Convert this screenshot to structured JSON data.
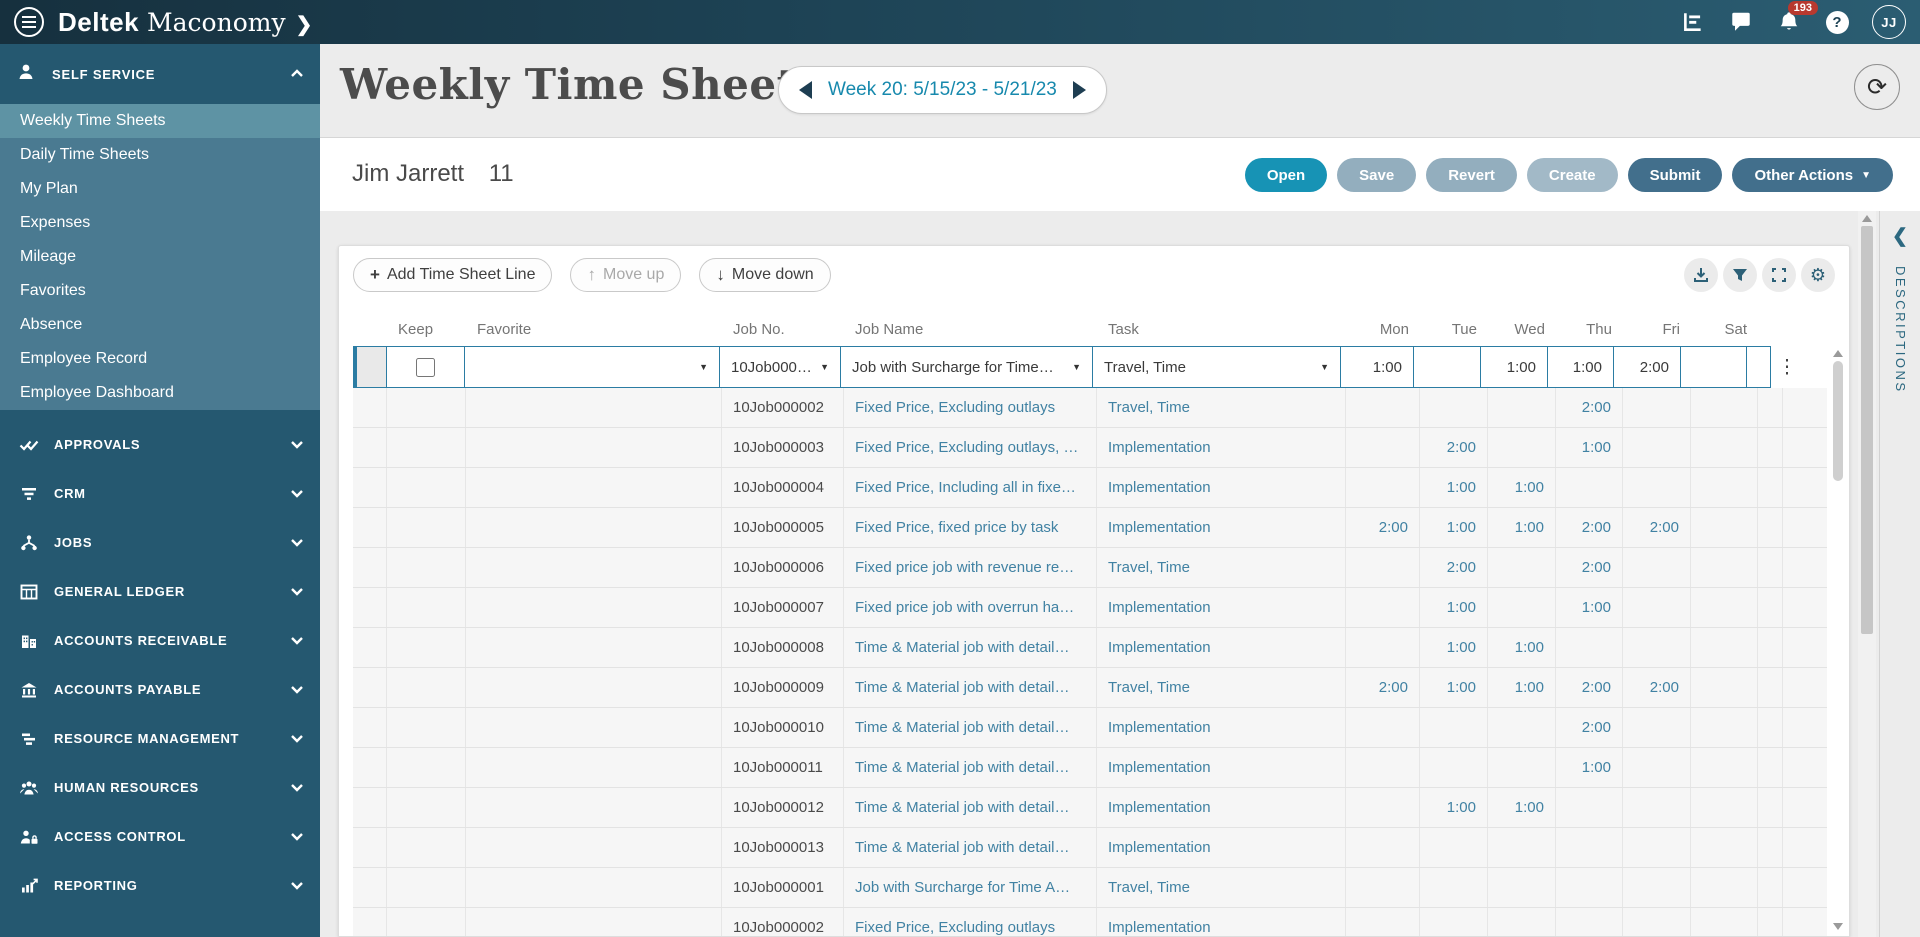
{
  "topbar": {
    "brand_primary": "Deltek",
    "brand_secondary": "Maconomy",
    "brand_chevron": "❯",
    "notification_count": "193",
    "avatar_initials": "JJ"
  },
  "sidebar": {
    "self_service": {
      "label": "SELF SERVICE",
      "items": [
        {
          "label": "Weekly Time Sheets",
          "active": true
        },
        {
          "label": "Daily Time Sheets"
        },
        {
          "label": "My Plan"
        },
        {
          "label": "Expenses"
        },
        {
          "label": "Mileage"
        },
        {
          "label": "Favorites"
        },
        {
          "label": "Absence"
        },
        {
          "label": "Employee Record"
        },
        {
          "label": "Employee Dashboard"
        }
      ]
    },
    "sections": [
      {
        "label": "APPROVALS",
        "icon": "approvals"
      },
      {
        "label": "CRM",
        "icon": "crm"
      },
      {
        "label": "JOBS",
        "icon": "jobs"
      },
      {
        "label": "GENERAL LEDGER",
        "icon": "general-ledger"
      },
      {
        "label": "ACCOUNTS RECEIVABLE",
        "icon": "accounts-receivable"
      },
      {
        "label": "ACCOUNTS PAYABLE",
        "icon": "accounts-payable"
      },
      {
        "label": "RESOURCE MANAGEMENT",
        "icon": "resource-management"
      },
      {
        "label": "HUMAN RESOURCES",
        "icon": "human-resources"
      },
      {
        "label": "ACCESS CONTROL",
        "icon": "access-control"
      },
      {
        "label": "REPORTING",
        "icon": "reporting"
      }
    ]
  },
  "page": {
    "title": "Weekly Time Sheets",
    "week_label": "Week 20: 5/15/23 - 5/21/23",
    "employee_name": "Jim Jarrett",
    "employee_number": "11"
  },
  "actions": {
    "open": "Open",
    "save": "Save",
    "revert": "Revert",
    "create": "Create",
    "submit": "Submit",
    "other_actions": "Other Actions"
  },
  "toolbar": {
    "add_line": "Add Time Sheet Line",
    "move_up": "Move up",
    "move_down": "Move down"
  },
  "table": {
    "columns": [
      "Keep",
      "Favorite",
      "Job No.",
      "Job Name",
      "Task",
      "Mon",
      "Tue",
      "Wed",
      "Thu",
      "Fri",
      "Sat"
    ],
    "rows": [
      {
        "job_no": "10Job000…",
        "job_name": "Job with Surcharge for Time…",
        "task": "Travel, Time",
        "days": [
          "1:00",
          "",
          "1:00",
          "1:00",
          "2:00",
          ""
        ]
      },
      {
        "job_no": "10Job000002",
        "job_name": "Fixed Price, Excluding outlays",
        "task": "Travel, Time",
        "days": [
          "",
          "",
          "",
          "2:00",
          "",
          ""
        ]
      },
      {
        "job_no": "10Job000003",
        "job_name": "Fixed Price, Excluding outlays, …",
        "task": "Implementation",
        "days": [
          "",
          "2:00",
          "",
          "1:00",
          "",
          ""
        ]
      },
      {
        "job_no": "10Job000004",
        "job_name": "Fixed Price, Including all in fixe…",
        "task": "Implementation",
        "days": [
          "",
          "1:00",
          "1:00",
          "",
          "",
          ""
        ]
      },
      {
        "job_no": "10Job000005",
        "job_name": "Fixed Price, fixed price by task",
        "task": "Implementation",
        "days": [
          "2:00",
          "1:00",
          "1:00",
          "2:00",
          "2:00",
          ""
        ]
      },
      {
        "job_no": "10Job000006",
        "job_name": "Fixed price job with revenue re…",
        "task": "Travel, Time",
        "days": [
          "",
          "2:00",
          "",
          "2:00",
          "",
          ""
        ]
      },
      {
        "job_no": "10Job000007",
        "job_name": "Fixed price job with overrun ha…",
        "task": "Implementation",
        "days": [
          "",
          "1:00",
          "",
          "1:00",
          "",
          ""
        ]
      },
      {
        "job_no": "10Job000008",
        "job_name": "Time & Material job with detail…",
        "task": "Implementation",
        "days": [
          "",
          "1:00",
          "1:00",
          "",
          "",
          ""
        ]
      },
      {
        "job_no": "10Job000009",
        "job_name": "Time & Material job with detail…",
        "task": "Travel, Time",
        "days": [
          "2:00",
          "1:00",
          "1:00",
          "2:00",
          "2:00",
          ""
        ]
      },
      {
        "job_no": "10Job000010",
        "job_name": "Time & Material job with detail…",
        "task": "Implementation",
        "days": [
          "",
          "",
          "",
          "2:00",
          "",
          ""
        ]
      },
      {
        "job_no": "10Job000011",
        "job_name": "Time & Material job with detail…",
        "task": "Implementation",
        "days": [
          "",
          "",
          "",
          "1:00",
          "",
          ""
        ]
      },
      {
        "job_no": "10Job000012",
        "job_name": "Time & Material job with detail…",
        "task": "Implementation",
        "days": [
          "",
          "1:00",
          "1:00",
          "",
          "",
          ""
        ]
      },
      {
        "job_no": "10Job000013",
        "job_name": "Time & Material job with detail…",
        "task": "Implementation",
        "days": [
          "",
          "",
          "",
          "",
          "",
          ""
        ]
      },
      {
        "job_no": "10Job000001",
        "job_name": "Job with Surcharge for Time A…",
        "task": "Travel, Time",
        "days": [
          "",
          "",
          "",
          "",
          "",
          ""
        ]
      },
      {
        "job_no": "10Job000002",
        "job_name": "Fixed Price, Excluding outlays",
        "task": "Implementation",
        "days": [
          "",
          "",
          "",
          "",
          "",
          ""
        ]
      }
    ]
  },
  "right_panel": {
    "label": "DESCRIPTIONS"
  },
  "colors": {
    "accent_teal": "#1793b5",
    "link_blue": "#4182a3",
    "dark_navy": "#1e3e52",
    "submit_blue": "#426f8c",
    "disabled_gray": "#93aebe",
    "selected_row_border": "#2b7ca3",
    "badge_red": "#b8392f",
    "sidebar_bg": "#255870",
    "submenu_bg": "#4a7a91",
    "submenu_selected_bg": "#5e93a4"
  }
}
